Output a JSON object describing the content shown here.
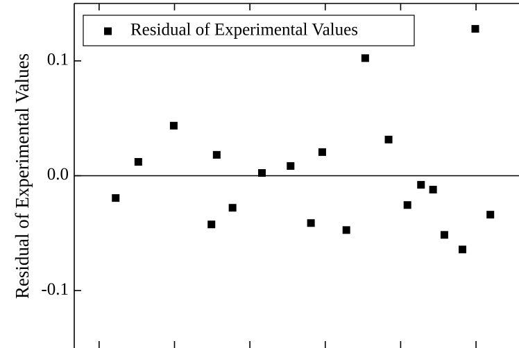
{
  "chart_data": {
    "type": "scatter",
    "y_label": "Residual of Experimental Values",
    "series": [
      {
        "name": "Residual of Experimental Values",
        "color": "#000000",
        "x": [
          1.22,
          1.52,
          1.99,
          2.49,
          2.56,
          2.77,
          3.16,
          3.54,
          3.81,
          3.96,
          4.28,
          4.53,
          4.84,
          5.09,
          5.27,
          5.43,
          5.58,
          5.82,
          5.99,
          6.19
        ],
        "values": [
          -0.0194,
          0.0121,
          0.0436,
          -0.0424,
          0.0182,
          -0.0279,
          0.0024,
          0.0085,
          -0.0412,
          0.0206,
          -0.0473,
          0.1024,
          0.0315,
          -0.0255,
          -0.0079,
          -0.0121,
          -0.0515,
          -0.0642,
          0.1279,
          -0.0339
        ]
      }
    ],
    "xlim": [
      0.67,
      6.57
    ],
    "xticks": [
      1,
      2,
      3,
      4,
      5,
      6
    ],
    "ylim": [
      -0.15,
      0.15
    ],
    "yticks": [
      {
        "value": -0.1,
        "label": "-0.1"
      },
      {
        "value": 0,
        "label": "0.0"
      },
      {
        "value": 0.1,
        "label": "0.1"
      }
    ],
    "reference_line": 0,
    "legend": "upper left"
  }
}
